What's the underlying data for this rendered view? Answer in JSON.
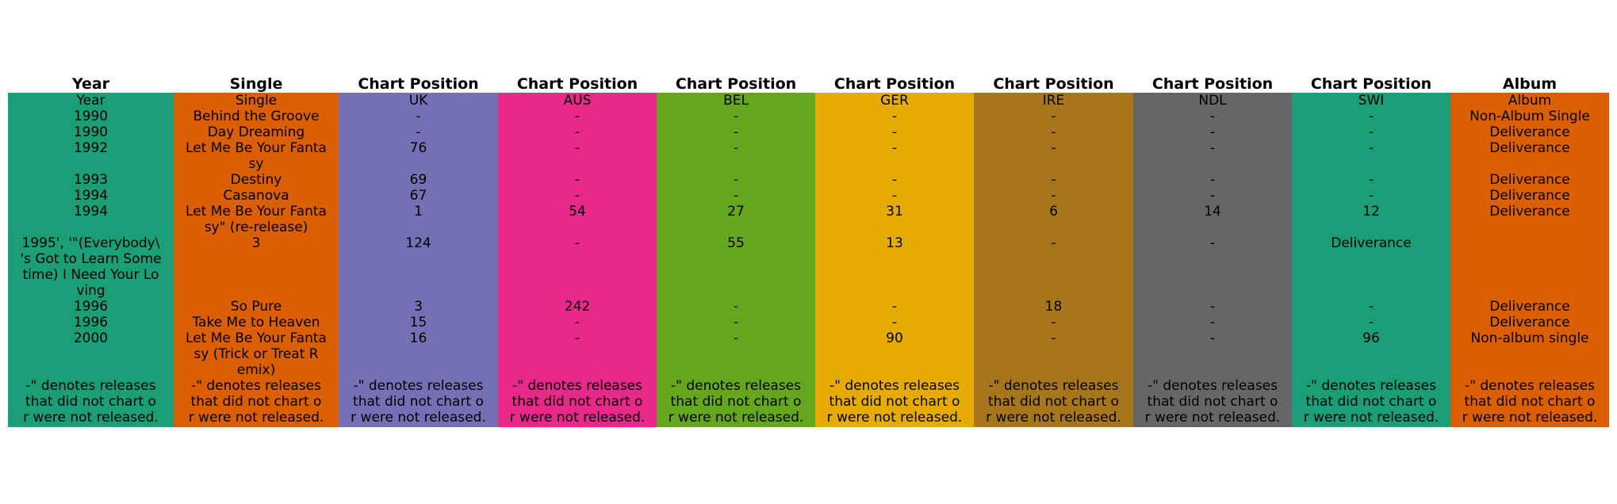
{
  "chart_data": {
    "type": "table",
    "columns": [
      {
        "header": "Year",
        "color": "#1b9e77"
      },
      {
        "header": "Single",
        "color": "#d95f02"
      },
      {
        "header": "Chart Position",
        "color": "#7570b3"
      },
      {
        "header": "Chart Position",
        "color": "#e7298a"
      },
      {
        "header": "Chart Position",
        "color": "#66a61e"
      },
      {
        "header": "Chart Position",
        "color": "#e6ab02"
      },
      {
        "header": "Chart Position",
        "color": "#a6761d"
      },
      {
        "header": "Chart Position",
        "color": "#666666"
      },
      {
        "header": "Chart Position",
        "color": "#1b9e77"
      },
      {
        "header": "Album",
        "color": "#d95f02"
      }
    ],
    "rows": [
      [
        "Year",
        "Single",
        "UK",
        "AUS",
        "BEL",
        "GER",
        "IRE",
        "NDL",
        "SWI",
        "Album"
      ],
      [
        "1990",
        "Behind the Groove",
        "-",
        "-",
        "-",
        "-",
        "-",
        "-",
        "-",
        "Non-Album Single"
      ],
      [
        "1990",
        "Day Dreaming",
        "-",
        "-",
        "-",
        "-",
        "-",
        "-",
        "-",
        "Deliverance"
      ],
      [
        "1992",
        "Let Me Be Your Fanta\nsy",
        "76",
        "-",
        "-",
        "-",
        "-",
        "-",
        "-",
        "Deliverance"
      ],
      [
        "1993",
        "Destiny",
        "69",
        "-",
        "-",
        "-",
        "-",
        "-",
        "-",
        "Deliverance"
      ],
      [
        "1994",
        "Casanova",
        "67",
        "-",
        "-",
        "-",
        "-",
        "-",
        "-",
        "Deliverance"
      ],
      [
        "1994",
        "Let Me Be Your Fanta\nsy\" (re-release)",
        "1",
        "54",
        "27",
        "31",
        "6",
        "14",
        "12",
        "Deliverance"
      ],
      [
        "1995', '\"(Everybody\\\n's Got to Learn Some\ntime) I Need Your Lo\nving",
        "3",
        "124",
        "-",
        "55",
        "13",
        "-",
        "-",
        "Deliverance",
        ""
      ],
      [
        "1996",
        "So Pure",
        "3",
        "242",
        "-",
        "-",
        "18",
        "-",
        "-",
        "Deliverance"
      ],
      [
        "1996",
        "Take Me to Heaven",
        "15",
        "-",
        "-",
        "-",
        "-",
        "-",
        "-",
        "Deliverance"
      ],
      [
        "2000",
        "Let Me Be Your Fanta\nsy (Trick or Treat R\nemix)",
        "16",
        "-",
        "-",
        "90",
        "-",
        "-",
        "96",
        "Non-album single"
      ],
      [
        "-\" denotes releases\nthat did not chart o\nr were not released.",
        "-\" denotes releases\nthat did not chart o\nr were not released.",
        "-\" denotes releases\nthat did not chart o\nr were not released.",
        "-\" denotes releases\nthat did not chart o\nr were not released.",
        "-\" denotes releases\nthat did not chart o\nr were not released.",
        "-\" denotes releases\nthat did not chart o\nr were not released.",
        "-\" denotes releases\nthat did not chart o\nr were not released.",
        "-\" denotes releases\nthat did not chart o\nr were not released.",
        "-\" denotes releases\nthat did not chart o\nr were not released.",
        "-\" denotes releases\nthat did not chart o\nr were not released."
      ]
    ]
  }
}
